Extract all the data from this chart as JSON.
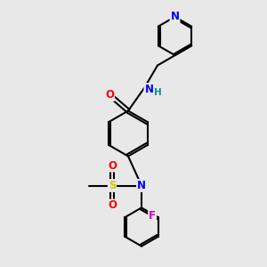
{
  "bg_color": "#e8e8e8",
  "atom_colors": {
    "N": "#0000ff",
    "O": "#ff0000",
    "F": "#cc00cc",
    "S": "#cccc00",
    "C": "#000000",
    "H": "#009090"
  },
  "bond_color": "#000000",
  "bond_width": 1.5,
  "font_size": 8.5
}
